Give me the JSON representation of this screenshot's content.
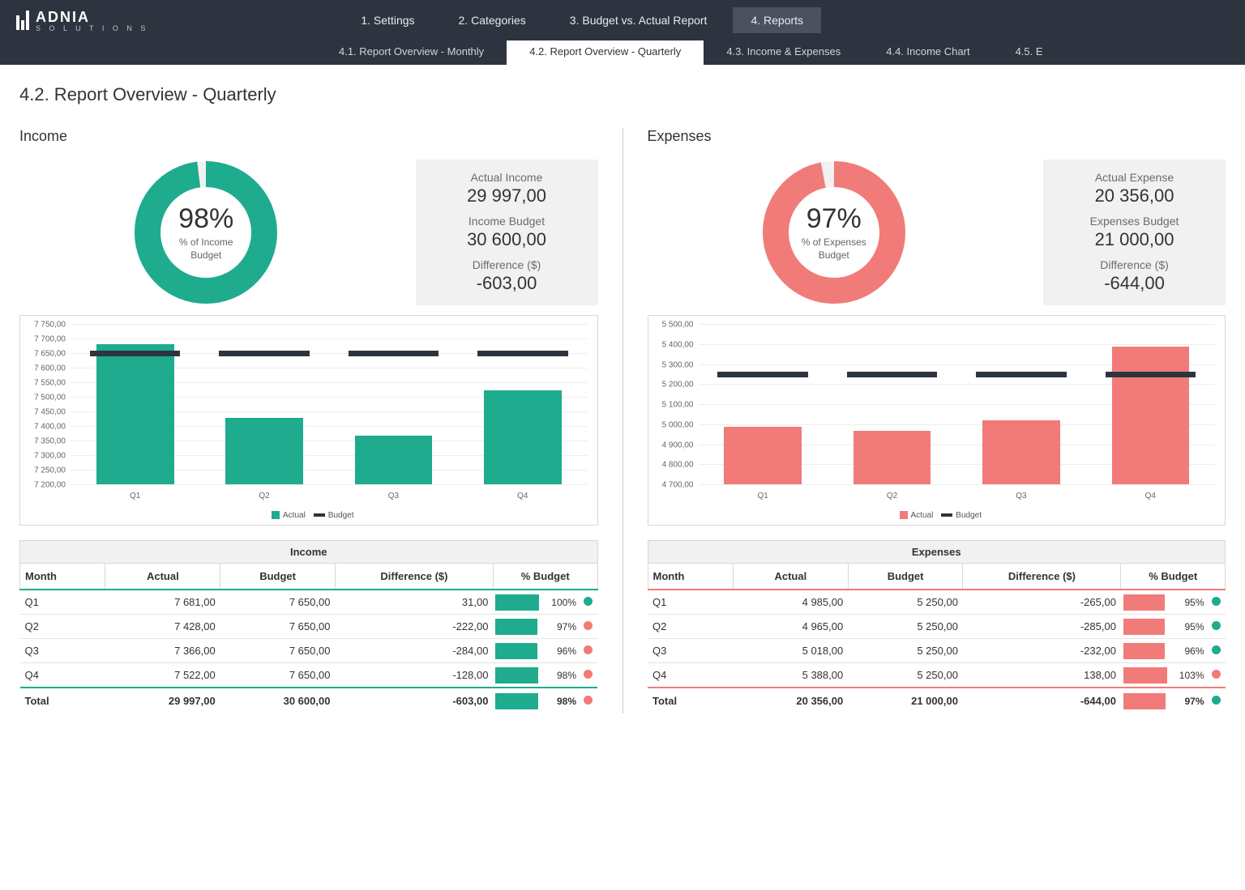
{
  "brand": {
    "name": "ADNIA",
    "sub": "S O L U T I O N S"
  },
  "nav": {
    "tabs": [
      "1. Settings",
      "2. Categories",
      "3. Budget vs. Actual Report",
      "4. Reports"
    ],
    "active": 3,
    "subtabs": [
      "4.1. Report Overview - Monthly",
      "4.2. Report Overview - Quarterly",
      "4.3. Income & Expenses",
      "4.4. Income Chart",
      "4.5. E"
    ],
    "sub_active": 1
  },
  "page_title": "4.2. Report Overview - Quarterly",
  "colors": {
    "income": "#1fab8e",
    "expense": "#f17b78",
    "budget_bar": "#2d3440",
    "dot_good": "#1fab8e",
    "dot_bad": "#f17b78",
    "grid": "#eeeeee",
    "panel_bg": "#f1f1f1"
  },
  "income": {
    "title": "Income",
    "donut": {
      "pct": 98,
      "pct_text": "98%",
      "label": "% of Income\nBudget"
    },
    "stats": [
      {
        "label": "Actual Income",
        "value": "29 997,00"
      },
      {
        "label": "Income Budget",
        "value": "30 600,00"
      },
      {
        "label": "Difference ($)",
        "value": "-603,00"
      }
    ],
    "chart": {
      "ymin": 7200,
      "ymax": 7750,
      "ystep": 50,
      "yticklabels": [
        "7 200,00",
        "7 250,00",
        "7 300,00",
        "7 350,00",
        "7 400,00",
        "7 450,00",
        "7 500,00",
        "7 550,00",
        "7 600,00",
        "7 650,00",
        "7 700,00",
        "7 750,00"
      ],
      "categories": [
        "Q1",
        "Q2",
        "Q3",
        "Q4"
      ],
      "actual": [
        7681,
        7428,
        7366,
        7522
      ],
      "budget": [
        7650,
        7650,
        7650,
        7650
      ],
      "legend": {
        "actual": "Actual",
        "budget": "Budget"
      }
    },
    "table": {
      "title": "Income",
      "headers": [
        "Month",
        "Actual",
        "Budget",
        "Difference ($)",
        "% Budget"
      ],
      "accent": "#1fab8e",
      "rows": [
        {
          "month": "Q1",
          "actual": "7 681,00",
          "budget": "7 650,00",
          "diff": "31,00",
          "pct": 100,
          "pct_text": "100%",
          "dot": "good"
        },
        {
          "month": "Q2",
          "actual": "7 428,00",
          "budget": "7 650,00",
          "diff": "-222,00",
          "pct": 97,
          "pct_text": "97%",
          "dot": "bad"
        },
        {
          "month": "Q3",
          "actual": "7 366,00",
          "budget": "7 650,00",
          "diff": "-284,00",
          "pct": 96,
          "pct_text": "96%",
          "dot": "bad"
        },
        {
          "month": "Q4",
          "actual": "7 522,00",
          "budget": "7 650,00",
          "diff": "-128,00",
          "pct": 98,
          "pct_text": "98%",
          "dot": "bad"
        }
      ],
      "total": {
        "label": "Total",
        "actual": "29 997,00",
        "budget": "30 600,00",
        "diff": "-603,00",
        "pct": 98,
        "pct_text": "98%",
        "dot": "bad"
      }
    }
  },
  "expenses": {
    "title": "Expenses",
    "donut": {
      "pct": 97,
      "pct_text": "97%",
      "label": "% of Expenses\nBudget"
    },
    "stats": [
      {
        "label": "Actual Expense",
        "value": "20 356,00"
      },
      {
        "label": "Expenses Budget",
        "value": "21 000,00"
      },
      {
        "label": "Difference ($)",
        "value": "-644,00"
      }
    ],
    "chart": {
      "ymin": 4700,
      "ymax": 5500,
      "ystep": 100,
      "yticklabels": [
        "4 700,00",
        "4 800,00",
        "4 900,00",
        "5 000,00",
        "5 100,00",
        "5 200,00",
        "5 300,00",
        "5 400,00",
        "5 500,00"
      ],
      "categories": [
        "Q1",
        "Q2",
        "Q3",
        "Q4"
      ],
      "actual": [
        4985,
        4965,
        5018,
        5388
      ],
      "budget": [
        5250,
        5250,
        5250,
        5250
      ],
      "legend": {
        "actual": "Actual",
        "budget": "Budget"
      }
    },
    "table": {
      "title": "Expenses",
      "headers": [
        "Month",
        "Actual",
        "Budget",
        "Difference ($)",
        "% Budget"
      ],
      "accent": "#f17b78",
      "rows": [
        {
          "month": "Q1",
          "actual": "4 985,00",
          "budget": "5 250,00",
          "diff": "-265,00",
          "pct": 95,
          "pct_text": "95%",
          "dot": "good"
        },
        {
          "month": "Q2",
          "actual": "4 965,00",
          "budget": "5 250,00",
          "diff": "-285,00",
          "pct": 95,
          "pct_text": "95%",
          "dot": "good"
        },
        {
          "month": "Q3",
          "actual": "5 018,00",
          "budget": "5 250,00",
          "diff": "-232,00",
          "pct": 96,
          "pct_text": "96%",
          "dot": "good"
        },
        {
          "month": "Q4",
          "actual": "5 388,00",
          "budget": "5 250,00",
          "diff": "138,00",
          "pct": 103,
          "pct_text": "103%",
          "dot": "bad"
        }
      ],
      "total": {
        "label": "Total",
        "actual": "20 356,00",
        "budget": "21 000,00",
        "diff": "-644,00",
        "pct": 97,
        "pct_text": "97%",
        "dot": "good"
      }
    }
  }
}
